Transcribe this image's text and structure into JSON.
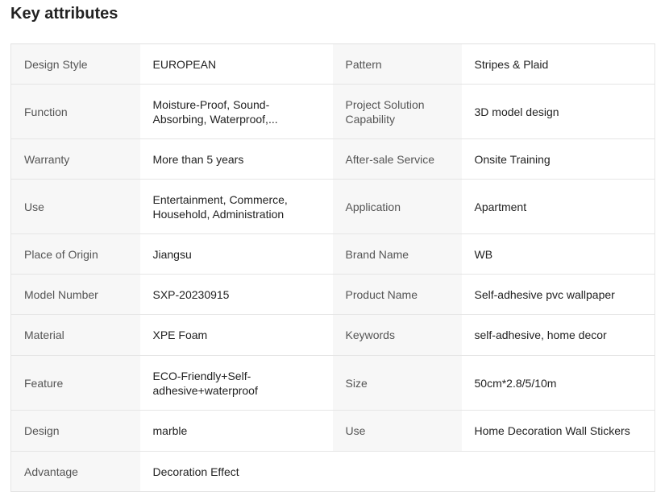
{
  "title": "Key attributes",
  "rows": [
    {
      "l1": "Design Style",
      "v1": "EUROPEAN",
      "l2": "Pattern",
      "v2": "Stripes & Plaid"
    },
    {
      "l1": "Function",
      "v1": "Moisture-Proof, Sound-Absorbing, Waterproof,...",
      "l2": "Project Solution Capability",
      "v2": "3D model design"
    },
    {
      "l1": "Warranty",
      "v1": "More than 5 years",
      "l2": "After-sale Service",
      "v2": "Onsite Training"
    },
    {
      "l1": "Use",
      "v1": "Entertainment, Commerce, Household, Administration",
      "l2": "Application",
      "v2": "Apartment"
    },
    {
      "l1": "Place of Origin",
      "v1": "Jiangsu",
      "l2": "Brand Name",
      "v2": "WB"
    },
    {
      "l1": "Model Number",
      "v1": "SXP-20230915",
      "l2": "Product Name",
      "v2": "Self-adhesive pvc wallpaper"
    },
    {
      "l1": "Material",
      "v1": "XPE Foam",
      "l2": "Keywords",
      "v2": "self-adhesive, home decor"
    },
    {
      "l1": "Feature",
      "v1": "ECO-Friendly+Self-adhesive+waterproof",
      "l2": "Size",
      "v2": "50cm*2.8/5/10m"
    },
    {
      "l1": "Design",
      "v1": "marble",
      "l2": "Use",
      "v2": "Home Decoration Wall Stickers"
    },
    {
      "l1": "Advantage",
      "v1": "Decoration Effect"
    }
  ]
}
